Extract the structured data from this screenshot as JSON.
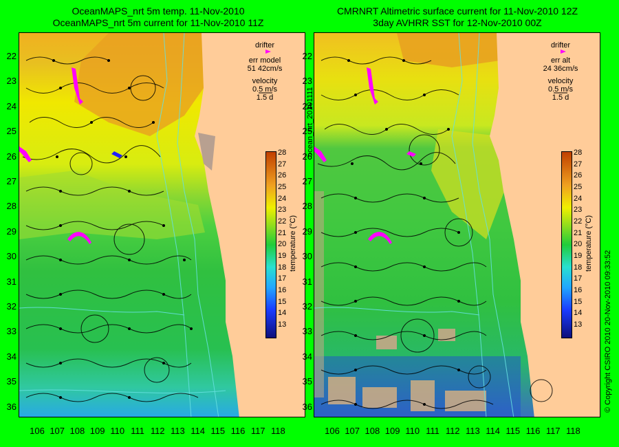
{
  "titles": {
    "left_line1": "OceanMAPS_nrt 5m temp. 11-Nov-2010",
    "left_line2": "OceanMAPS_nrt 5m current for 11-Nov-2010 11Z",
    "right_line1": "CMRNRT Altimetric surface current for 11-Nov-2010 12Z",
    "right_line2": "3day AVHRR SST for 12-Nov-2010 00Z"
  },
  "y_labels": [
    "22",
    "23",
    "24",
    "25",
    "26",
    "27",
    "28",
    "29",
    "30",
    "31",
    "32",
    "33",
    "34",
    "35",
    "36"
  ],
  "x_labels": [
    "106",
    "107",
    "108",
    "109",
    "110",
    "111",
    "112",
    "113",
    "114",
    "115",
    "116",
    "117",
    "118"
  ],
  "legend_left": {
    "drifter": "drifter",
    "err": "err model",
    "err_value": "51 42cm/s",
    "velocity": "velocity",
    "velocity_scale": "0.5 m/s",
    "duration": "1.5 d"
  },
  "legend_right": {
    "drifter": "drifter",
    "err": "err alt",
    "err_value": "24 36cm/s",
    "velocity": "velocity",
    "velocity_scale": "0.5 m/s",
    "duration": "1.5 d"
  },
  "colorbar": {
    "ticks": [
      "28",
      "27",
      "26",
      "25",
      "24",
      "23",
      "22",
      "21",
      "20",
      "19",
      "18",
      "17",
      "16",
      "15",
      "14",
      "13"
    ],
    "label": "temperature (°C)"
  },
  "side_text": {
    "middle": "ocean_nrt_20101111",
    "right": "© Copyright CSIRO 2010   20-Nov-2010 09:33:52"
  },
  "colors": {
    "background": "#00ff00",
    "land": "#ffcc99",
    "drifter": "#ff00ff",
    "contour": "#66e0e0"
  }
}
